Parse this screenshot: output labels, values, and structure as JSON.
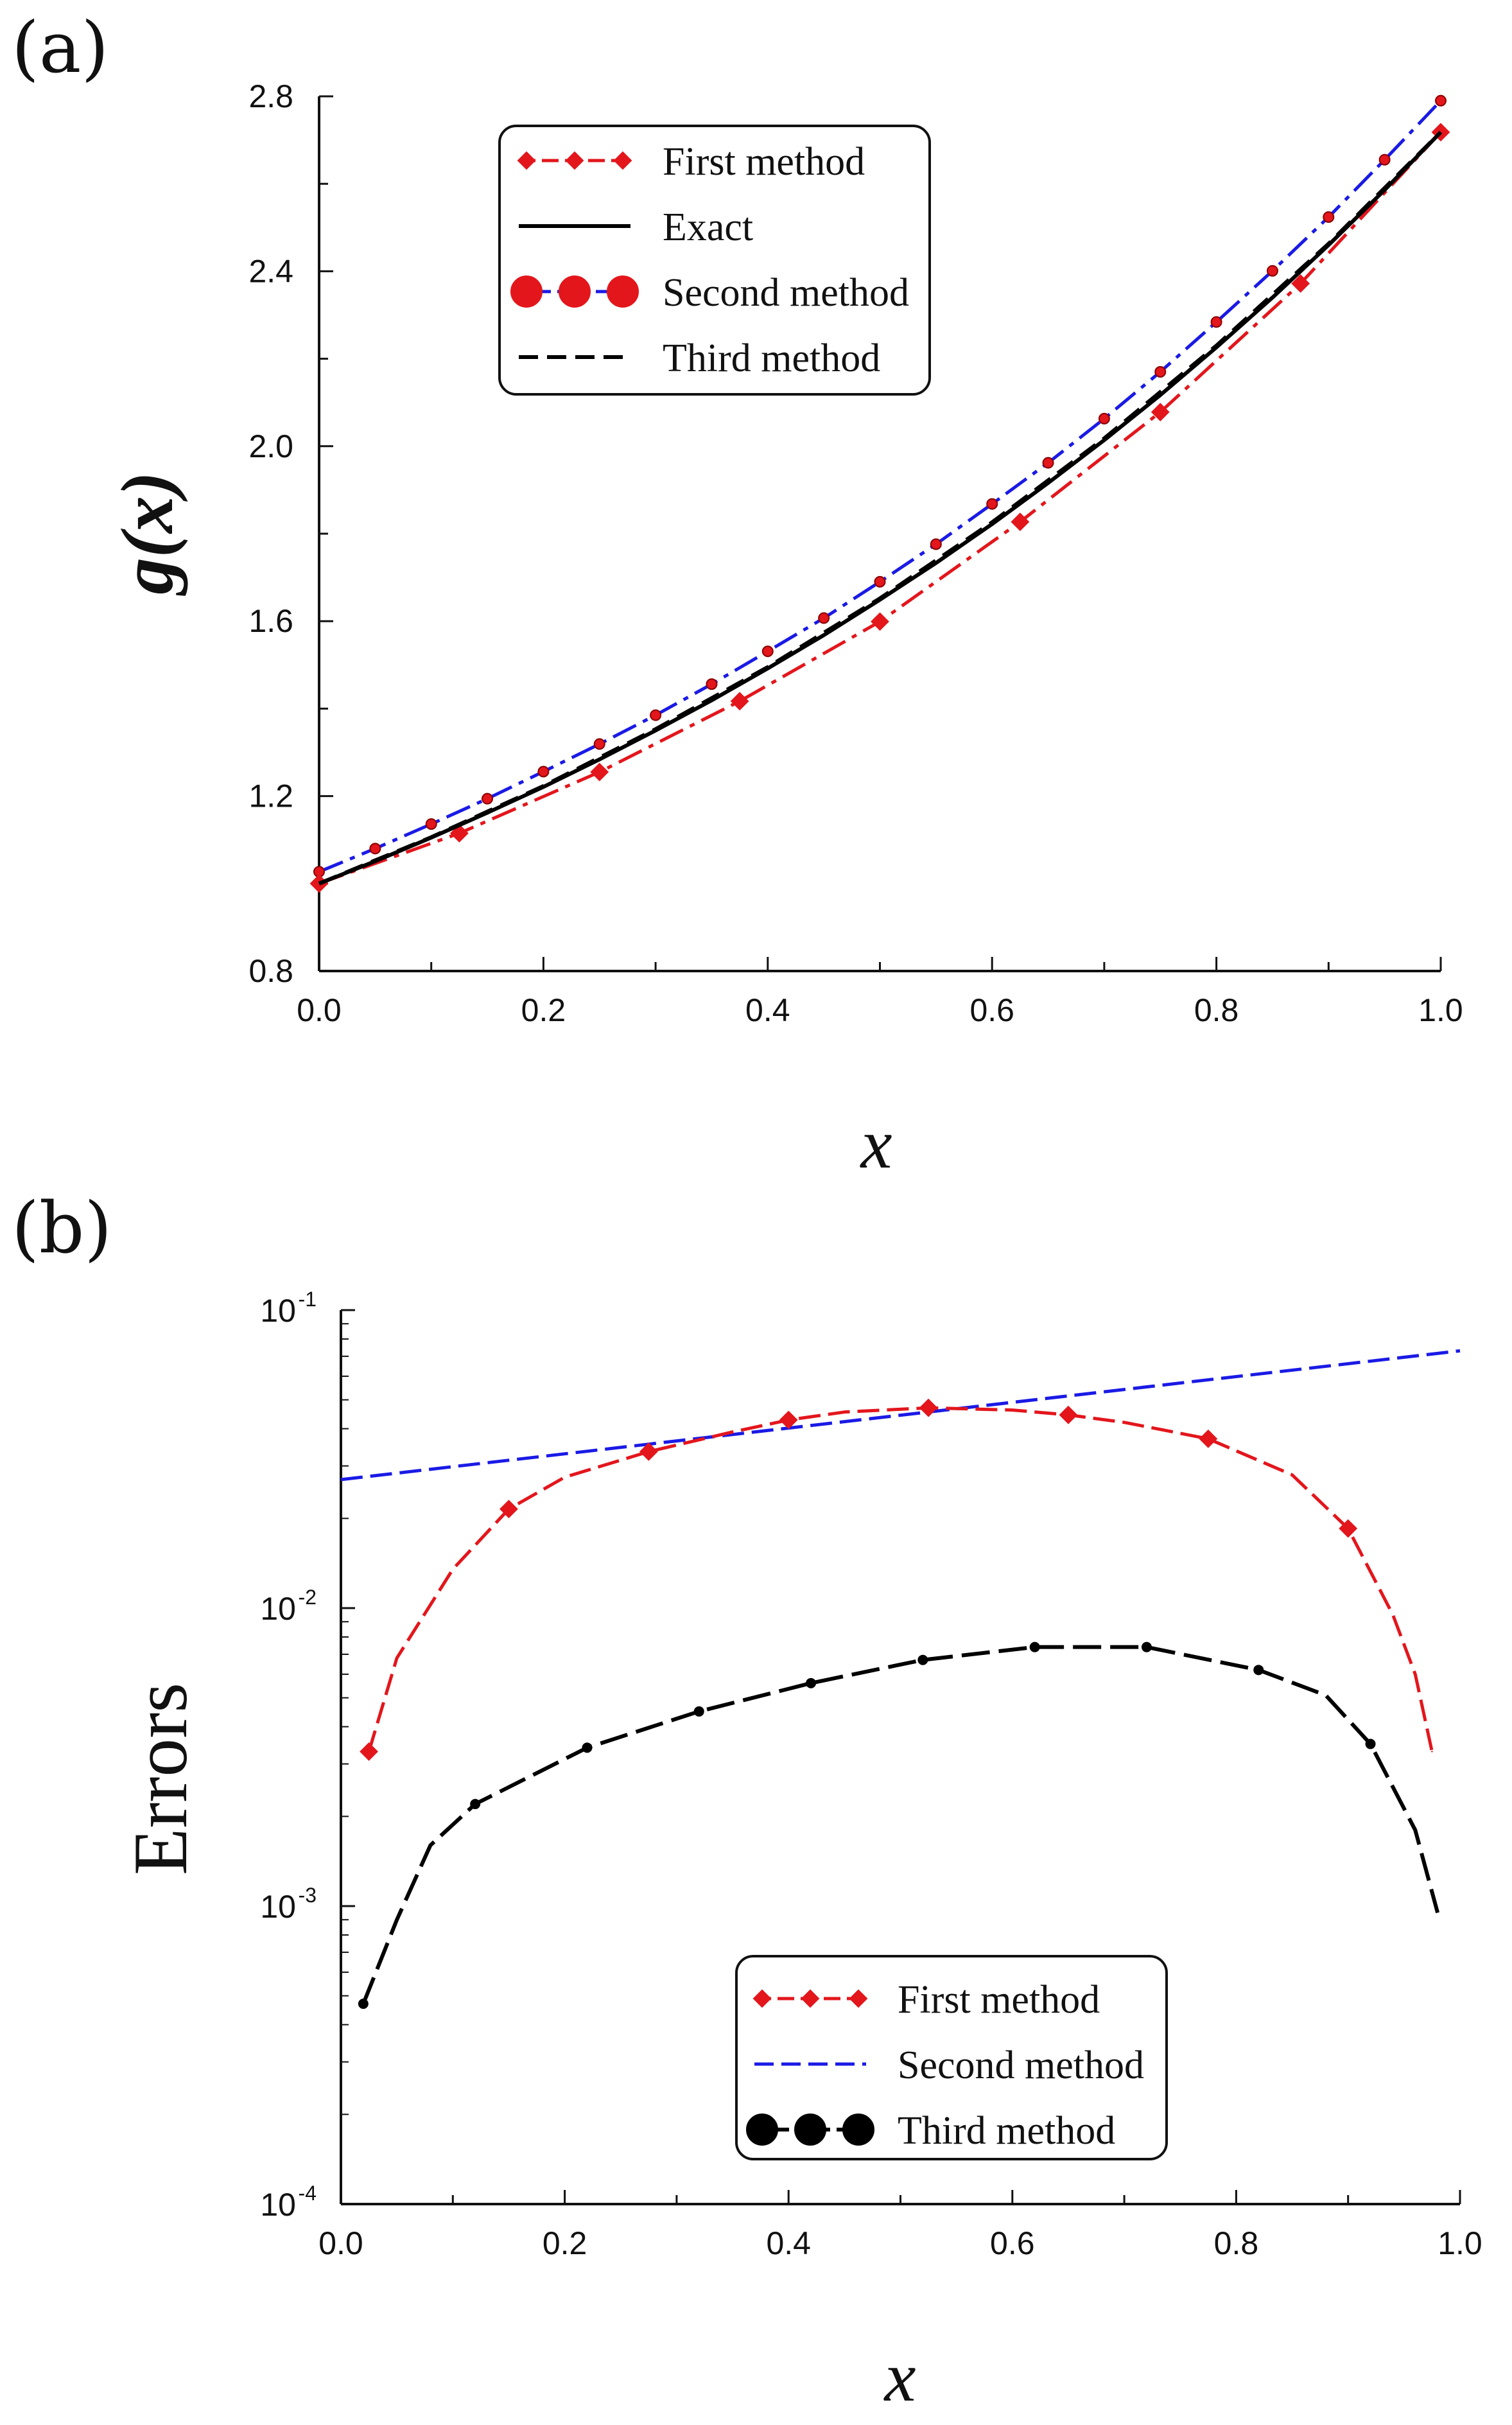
{
  "chart_data": [
    {
      "panel": "(a)",
      "type": "line",
      "title": "",
      "xlabel": "x",
      "ylabel": "g(x)",
      "xlim": [
        0.0,
        1.0
      ],
      "ylim": [
        0.8,
        2.8
      ],
      "x_ticks": [
        "0.0",
        "0.2",
        "0.4",
        "0.6",
        "0.8",
        "1.0"
      ],
      "y_ticks": [
        "0.8",
        "1.2",
        "1.6",
        "2.0",
        "2.4",
        "2.8"
      ],
      "legend": [
        "First method",
        "Exact",
        "Second method",
        "Third method"
      ],
      "series": [
        {
          "name": "First method",
          "color": "#e3161c",
          "x": [
            0.0,
            0.125,
            0.25,
            0.375,
            0.5,
            0.625,
            0.75,
            0.875,
            1.0
          ],
          "values": [
            1.0,
            1.115,
            1.255,
            1.417,
            1.599,
            1.827,
            2.078,
            2.372,
            2.718
          ]
        },
        {
          "name": "Exact",
          "color": "#000000",
          "x": [
            0.0,
            0.05,
            0.1,
            0.15,
            0.2,
            0.25,
            0.3,
            0.35,
            0.4,
            0.45,
            0.5,
            0.55,
            0.6,
            0.65,
            0.7,
            0.75,
            0.8,
            0.85,
            0.9,
            0.95,
            1.0
          ],
          "values": [
            1.0,
            1.051,
            1.105,
            1.162,
            1.221,
            1.284,
            1.35,
            1.419,
            1.492,
            1.568,
            1.649,
            1.733,
            1.822,
            1.916,
            2.014,
            2.117,
            2.226,
            2.34,
            2.46,
            2.586,
            2.718
          ]
        },
        {
          "name": "Second method",
          "color": "#1a1ae6",
          "x": [
            0.0,
            0.05,
            0.1,
            0.15,
            0.2,
            0.25,
            0.3,
            0.35,
            0.4,
            0.45,
            0.5,
            0.55,
            0.6,
            0.65,
            0.7,
            0.75,
            0.8,
            0.85,
            0.9,
            0.95,
            1.0
          ],
          "values": [
            1.027,
            1.08,
            1.136,
            1.194,
            1.256,
            1.319,
            1.385,
            1.456,
            1.531,
            1.607,
            1.69,
            1.776,
            1.868,
            1.962,
            2.063,
            2.17,
            2.284,
            2.401,
            2.524,
            2.655,
            2.79
          ]
        },
        {
          "name": "Third method",
          "color": "#000000",
          "x": [
            0.0,
            0.1,
            0.2,
            0.3,
            0.4,
            0.5,
            0.6,
            0.7,
            0.8,
            0.9,
            1.0
          ],
          "values": [
            1.0,
            1.106,
            1.223,
            1.353,
            1.495,
            1.652,
            1.826,
            2.018,
            2.23,
            2.463,
            2.718
          ]
        }
      ]
    },
    {
      "panel": "(b)",
      "type": "line",
      "title": "",
      "xlabel": "x",
      "ylabel": "Errors",
      "yscale": "log",
      "xlim": [
        0.0,
        1.0
      ],
      "ylim": [
        0.0001,
        0.1
      ],
      "x_ticks": [
        "0.0",
        "0.2",
        "0.4",
        "0.6",
        "0.8",
        "1.0"
      ],
      "y_ticks": [
        {
          "base": "10",
          "exp": "-4"
        },
        {
          "base": "10",
          "exp": "-3"
        },
        {
          "base": "10",
          "exp": "-2"
        },
        {
          "base": "10",
          "exp": "-1"
        }
      ],
      "legend": [
        "First method",
        "Second method",
        "Third method"
      ],
      "series": [
        {
          "name": "First method",
          "color": "#e3161c",
          "x": [
            0.025,
            0.05,
            0.1,
            0.15,
            0.2,
            0.275,
            0.35,
            0.4,
            0.45,
            0.525,
            0.6,
            0.65,
            0.7,
            0.775,
            0.85,
            0.9,
            0.94,
            0.96,
            0.975
          ],
          "values": [
            0.0033,
            0.0068,
            0.0135,
            0.0215,
            0.0275,
            0.0335,
            0.039,
            0.0428,
            0.0455,
            0.047,
            0.0462,
            0.0445,
            0.042,
            0.037,
            0.028,
            0.0185,
            0.0095,
            0.006,
            0.0033
          ]
        },
        {
          "name": "Second method",
          "color": "#1a1ae6",
          "x": [
            0.0,
            1.0
          ],
          "values": [
            0.027,
            0.073
          ]
        },
        {
          "name": "Third method",
          "color": "#000000",
          "x": [
            0.02,
            0.05,
            0.08,
            0.12,
            0.22,
            0.32,
            0.42,
            0.52,
            0.62,
            0.72,
            0.82,
            0.88,
            0.92,
            0.96,
            0.98
          ],
          "values": [
            0.00047,
            0.0009,
            0.0016,
            0.0022,
            0.0034,
            0.0045,
            0.0056,
            0.0067,
            0.0074,
            0.0074,
            0.0062,
            0.0051,
            0.0035,
            0.0018,
            0.00095
          ]
        }
      ]
    }
  ]
}
